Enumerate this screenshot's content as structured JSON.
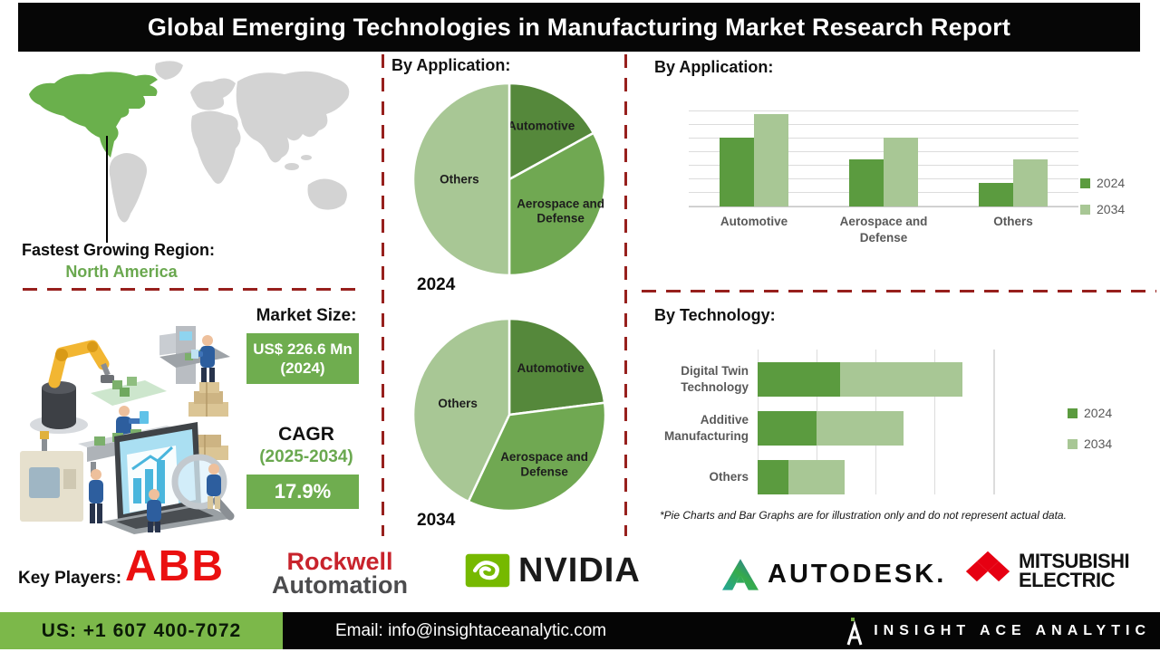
{
  "title": "Global Emerging Technologies in Manufacturing Market Research Report",
  "region": {
    "label": "Fastest Growing Region:",
    "value": "North America"
  },
  "market_size": {
    "label": "Market Size:",
    "value": "US$ 226.6 Mn (2024)"
  },
  "cagr": {
    "label": "CAGR",
    "period": "(2025-2034)",
    "value": "17.9%"
  },
  "theme": {
    "dark_green": "#5b9b3f",
    "mid_green": "#70a852",
    "light_green": "#a8c795",
    "accent_green_box": "#6fad4f",
    "footer_green": "#7cb84a",
    "dashed_divider_red": "#97201d",
    "map_highlight_green": "#6ab04c",
    "map_gray": "#d3d3d3"
  },
  "chart_data": [
    {
      "type": "pie",
      "year": "2024",
      "title": "By Application:",
      "slices": [
        {
          "label": "Automotive",
          "value": 17,
          "color": "#55883b",
          "label_r": 0.65
        },
        {
          "label": "Aerospace and Defense",
          "lines": [
            "Aerospace and",
            "Defense"
          ],
          "value": 33,
          "color": "#70a852",
          "label_r": 0.62
        },
        {
          "label": "Others",
          "value": 50,
          "color": "#a8c795",
          "label_r": 0.52
        }
      ]
    },
    {
      "type": "pie",
      "year": "2034",
      "title": "By Application:",
      "slices": [
        {
          "label": "Automotive",
          "value": 23,
          "color": "#55883b",
          "label_r": 0.65
        },
        {
          "label": "Aerospace and Defense",
          "lines": [
            "Aerospace and",
            "Defense"
          ],
          "value": 34,
          "color": "#70a852",
          "label_r": 0.62
        },
        {
          "label": "Others",
          "value": 43,
          "color": "#a8c795",
          "label_r": 0.55
        }
      ]
    },
    {
      "type": "bar",
      "title": "By Application:",
      "categories": [
        "Automotive",
        "Aerospace and Defense",
        "Others"
      ],
      "series": [
        {
          "name": "2024",
          "color": "#5b9b3f",
          "values": [
            63,
            43,
            22
          ]
        },
        {
          "name": "2034",
          "color": "#a8c795",
          "values": [
            85,
            63,
            43
          ]
        }
      ],
      "ylim": [
        0,
        100
      ],
      "unit": "illustrative percent of axis max",
      "grid": true,
      "legend_position": "right"
    },
    {
      "type": "bar-horizontal-stacked",
      "title": "By Technology:",
      "categories": [
        "Digital Twin Technology",
        "Additive Manufacturing",
        "Others"
      ],
      "series": [
        {
          "name": "2024",
          "color": "#5b9b3f",
          "values": [
            35,
            25,
            13
          ]
        },
        {
          "name": "2034",
          "color": "#a8c795",
          "values": [
            52,
            37,
            24
          ]
        }
      ],
      "xlim": [
        0,
        100
      ],
      "unit": "illustrative percent of axis max",
      "grid": true,
      "legend_position": "right"
    }
  ],
  "disclaimer": "*Pie Charts and Bar Graphs are for illustration only and do not represent actual data.",
  "key_players": {
    "label": "Key Players:",
    "companies": [
      {
        "id": "abb",
        "text": "ABB"
      },
      {
        "id": "rockwell-automation",
        "line1": "Rockwell",
        "line2": "Automation"
      },
      {
        "id": "nvidia",
        "text": "NVIDIA"
      },
      {
        "id": "autodesk",
        "text": "AUTODESK."
      },
      {
        "id": "mitsubishi-electric",
        "line1": "MITSUBISHI",
        "line2": "ELECTRIC"
      }
    ]
  },
  "footer": {
    "phone": "US: +1 607 400-7072",
    "email": "Email: info@insightaceanalytic.com",
    "brand": "INSIGHT ACE ANALYTIC"
  }
}
